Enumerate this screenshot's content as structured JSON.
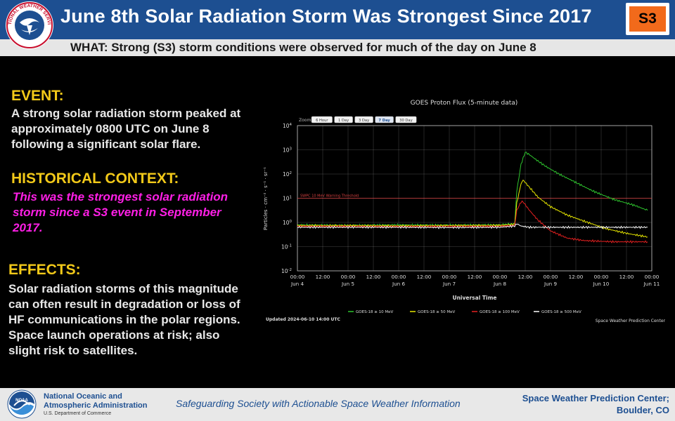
{
  "header": {
    "title": "June 8th Solar Radiation Storm Was Strongest Since 2017",
    "badge": "S3",
    "logo_text": "NATIONAL WEATHER SERVICE"
  },
  "subheader": {
    "text": "WHAT: Strong (S3) storm conditions were observed for much of the day on June 8"
  },
  "event": {
    "heading": "EVENT:",
    "lines": [
      "A strong solar radiation storm peaked at",
      "approximately 0800 UTC on June 8",
      "following a significant solar flare."
    ]
  },
  "context": {
    "heading": "HISTORICAL CONTEXT:",
    "lines": [
      "This was the strongest solar radiation",
      "storm since a S3 event in September",
      "2017."
    ]
  },
  "effects": {
    "heading": "EFFECTS:",
    "lines": [
      "Solar radiation storms of this magnitude",
      "can often result in degradation or loss of",
      "HF communications in the polar regions.",
      "Space launch operations at risk; also",
      "slight risk to satellites."
    ]
  },
  "chart": {
    "title": "GOES Proton Flux (5-minute data)",
    "zoom_label": "Zoom",
    "zoom_buttons": [
      "6 Hour",
      "1 Day",
      "3 Day",
      "7 Day",
      "30 Day"
    ],
    "zoom_selected": "7 Day",
    "ylabel": "Particles · cm⁻² · s⁻¹ · sr⁻¹",
    "xlabel": "Universal Time",
    "threshold_label": "SWPC 10 MeV Warning Threshold",
    "updated": "Updated 2024-06-10 14:00 UTC",
    "credit": "Space Weather Prediction Center",
    "colors": {
      "s10": "#2ec42e",
      "s50": "#e6e600",
      "s100": "#e62020",
      "s500": "#ffffff",
      "threshold": "#d94040",
      "grid": "#cccccc"
    }
  },
  "chart_data": {
    "type": "line",
    "title": "GOES Proton Flux (5-minute data)",
    "xlabel": "Universal Time",
    "ylabel": "Particles · cm⁻² · s⁻¹ · sr⁻¹",
    "y_scale": "log",
    "y_tick_exponents": [
      4,
      3,
      2,
      1,
      0,
      -1,
      -2
    ],
    "x_tick_labels": [
      [
        "00:00",
        "Jun 4"
      ],
      [
        "12:00",
        ""
      ],
      [
        "00:00",
        "Jun 5"
      ],
      [
        "12:00",
        ""
      ],
      [
        "00:00",
        "Jun 6"
      ],
      [
        "12:00",
        ""
      ],
      [
        "00:00",
        "Jun 7"
      ],
      [
        "12:00",
        ""
      ],
      [
        "00:00",
        "Jun 8"
      ],
      [
        "12:00",
        ""
      ],
      [
        "00:00",
        "Jun 9"
      ],
      [
        "12:00",
        ""
      ],
      [
        "00:00",
        "Jun 10"
      ],
      [
        "12:00",
        ""
      ],
      [
        "00:00",
        "Jun 11"
      ]
    ],
    "x_unit": "hours since 2024-06-04 00:00 UTC",
    "x_range": [
      0,
      168
    ],
    "y_range_exponent": [
      -2,
      4
    ],
    "threshold_exponent": 1,
    "series": [
      {
        "name": "GOES-18 ≥ 10 MeV",
        "color": "#2ec42e",
        "points": [
          [
            0,
            -0.1
          ],
          [
            24,
            -0.12
          ],
          [
            48,
            -0.1
          ],
          [
            72,
            -0.11
          ],
          [
            96,
            -0.1
          ],
          [
            103,
            -0.05
          ],
          [
            104,
            1.3
          ],
          [
            106,
            2.4
          ],
          [
            108,
            2.9
          ],
          [
            110,
            2.8
          ],
          [
            113,
            2.6
          ],
          [
            118,
            2.3
          ],
          [
            124,
            2.0
          ],
          [
            132,
            1.65
          ],
          [
            140,
            1.3
          ],
          [
            150,
            0.95
          ],
          [
            160,
            0.7
          ],
          [
            166,
            0.5
          ]
        ]
      },
      {
        "name": "GOES-18 ≥ 50 MeV",
        "color": "#e6e600",
        "points": [
          [
            0,
            -0.13
          ],
          [
            24,
            -0.13
          ],
          [
            48,
            -0.14
          ],
          [
            72,
            -0.13
          ],
          [
            96,
            -0.12
          ],
          [
            103,
            -0.08
          ],
          [
            104,
            0.8
          ],
          [
            106,
            1.6
          ],
          [
            107,
            1.75
          ],
          [
            110,
            1.45
          ],
          [
            114,
            1.05
          ],
          [
            120,
            0.65
          ],
          [
            128,
            0.3
          ],
          [
            136,
            0.05
          ],
          [
            146,
            -0.25
          ],
          [
            156,
            -0.45
          ],
          [
            166,
            -0.6
          ]
        ]
      },
      {
        "name": "GOES-18 ≥ 100 MeV",
        "color": "#e62020",
        "points": [
          [
            0,
            -0.16
          ],
          [
            24,
            -0.16
          ],
          [
            48,
            -0.17
          ],
          [
            72,
            -0.16
          ],
          [
            96,
            -0.16
          ],
          [
            103,
            -0.12
          ],
          [
            104,
            0.5
          ],
          [
            106,
            0.85
          ],
          [
            107,
            0.85
          ],
          [
            110,
            0.5
          ],
          [
            114,
            0.1
          ],
          [
            120,
            -0.35
          ],
          [
            128,
            -0.65
          ],
          [
            136,
            -0.75
          ],
          [
            150,
            -0.8
          ],
          [
            166,
            -0.8
          ]
        ]
      },
      {
        "name": "GOES-18 ≥ 500 MeV",
        "color": "#ffffff",
        "points": [
          [
            0,
            -0.2
          ],
          [
            24,
            -0.2
          ],
          [
            48,
            -0.2
          ],
          [
            72,
            -0.21
          ],
          [
            96,
            -0.2
          ],
          [
            103,
            -0.15
          ],
          [
            104,
            -0.05
          ],
          [
            106,
            -0.15
          ],
          [
            110,
            -0.2
          ],
          [
            130,
            -0.2
          ],
          [
            166,
            -0.2
          ]
        ]
      }
    ]
  },
  "footer": {
    "org_line1": "National Oceanic and",
    "org_line2": "Atmospheric Administration",
    "dept": "U.S. Department of Commerce",
    "noaa_abbr": "NOAA",
    "tagline": "Safeguarding Society with Actionable Space Weather Information",
    "center_line1": "Space Weather Prediction Center;",
    "center_line2": "Boulder, CO"
  }
}
